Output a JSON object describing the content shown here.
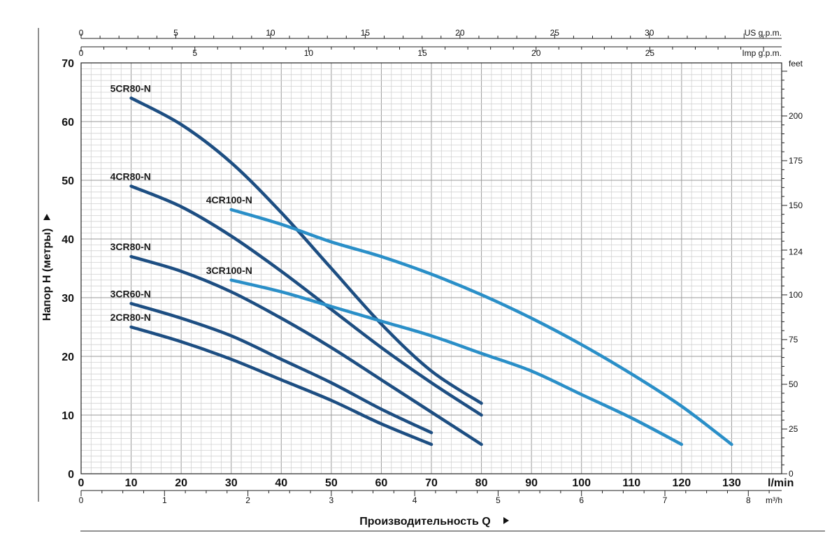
{
  "chart_data": {
    "type": "line",
    "xlabel": "Производительность Q",
    "ylabel": "Напор H (метры)",
    "x_unit_label": "l/min",
    "xlim": [
      0,
      140
    ],
    "ylim": [
      0,
      70
    ],
    "grid": true,
    "x_ticks": [
      0,
      10,
      20,
      30,
      40,
      50,
      60,
      70,
      80,
      90,
      100,
      110,
      120,
      130
    ],
    "y_ticks": [
      0,
      10,
      20,
      30,
      40,
      50,
      60,
      70
    ],
    "secondary_axes": {
      "us_gpm": {
        "label": "US g.p.m.",
        "ticks": [
          0,
          5,
          10,
          15,
          20,
          25,
          30
        ]
      },
      "imp_gpm": {
        "label": "Imp g.p.m.",
        "ticks": [
          0,
          5,
          10,
          15,
          20,
          25
        ]
      },
      "m3h": {
        "label": "m³/h",
        "ticks": [
          0,
          1,
          2,
          3,
          4,
          5,
          6,
          7,
          8
        ]
      },
      "feet": {
        "label": "feet",
        "ticks": [
          0,
          25,
          50,
          75,
          100,
          124,
          150,
          175,
          200
        ]
      }
    },
    "series": [
      {
        "name": "5CR80-N",
        "color": "#1d4e82",
        "points": [
          [
            10,
            64
          ],
          [
            20,
            59.5
          ],
          [
            30,
            53
          ],
          [
            40,
            44.5
          ],
          [
            50,
            35
          ],
          [
            60,
            25.5
          ],
          [
            70,
            17.5
          ],
          [
            80,
            12
          ]
        ]
      },
      {
        "name": "4CR80-N",
        "color": "#1d4e82",
        "points": [
          [
            10,
            49
          ],
          [
            20,
            45.5
          ],
          [
            30,
            40.5
          ],
          [
            40,
            34.5
          ],
          [
            50,
            28
          ],
          [
            60,
            21.5
          ],
          [
            70,
            15.5
          ],
          [
            80,
            10
          ]
        ]
      },
      {
        "name": "3CR80-N",
        "color": "#1d4e82",
        "points": [
          [
            10,
            37
          ],
          [
            20,
            34.5
          ],
          [
            30,
            31
          ],
          [
            40,
            26.5
          ],
          [
            50,
            21.5
          ],
          [
            60,
            16
          ],
          [
            70,
            10.5
          ],
          [
            80,
            5
          ]
        ]
      },
      {
        "name": "3CR60-N",
        "color": "#1d4e82",
        "points": [
          [
            10,
            29
          ],
          [
            20,
            26.5
          ],
          [
            30,
            23.5
          ],
          [
            40,
            19.5
          ],
          [
            50,
            15.5
          ],
          [
            60,
            11
          ],
          [
            70,
            7
          ]
        ]
      },
      {
        "name": "2CR80-N",
        "color": "#1d4e82",
        "points": [
          [
            10,
            25
          ],
          [
            20,
            22.5
          ],
          [
            30,
            19.5
          ],
          [
            40,
            16
          ],
          [
            50,
            12.5
          ],
          [
            60,
            8.5
          ],
          [
            70,
            5
          ]
        ]
      },
      {
        "name": "4CR100-N",
        "color": "#2a8fc8",
        "points": [
          [
            30,
            45
          ],
          [
            40,
            42.5
          ],
          [
            50,
            39.5
          ],
          [
            60,
            37
          ],
          [
            70,
            34
          ],
          [
            80,
            30.5
          ],
          [
            90,
            26.5
          ],
          [
            100,
            22
          ],
          [
            110,
            17
          ],
          [
            120,
            11.5
          ],
          [
            130,
            5
          ]
        ]
      },
      {
        "name": "3CR100-N",
        "color": "#2a8fc8",
        "points": [
          [
            30,
            33
          ],
          [
            40,
            31
          ],
          [
            50,
            28.5
          ],
          [
            60,
            26
          ],
          [
            70,
            23.5
          ],
          [
            80,
            20.5
          ],
          [
            90,
            17.5
          ],
          [
            100,
            13.5
          ],
          [
            110,
            9.5
          ],
          [
            120,
            5
          ]
        ]
      }
    ]
  }
}
